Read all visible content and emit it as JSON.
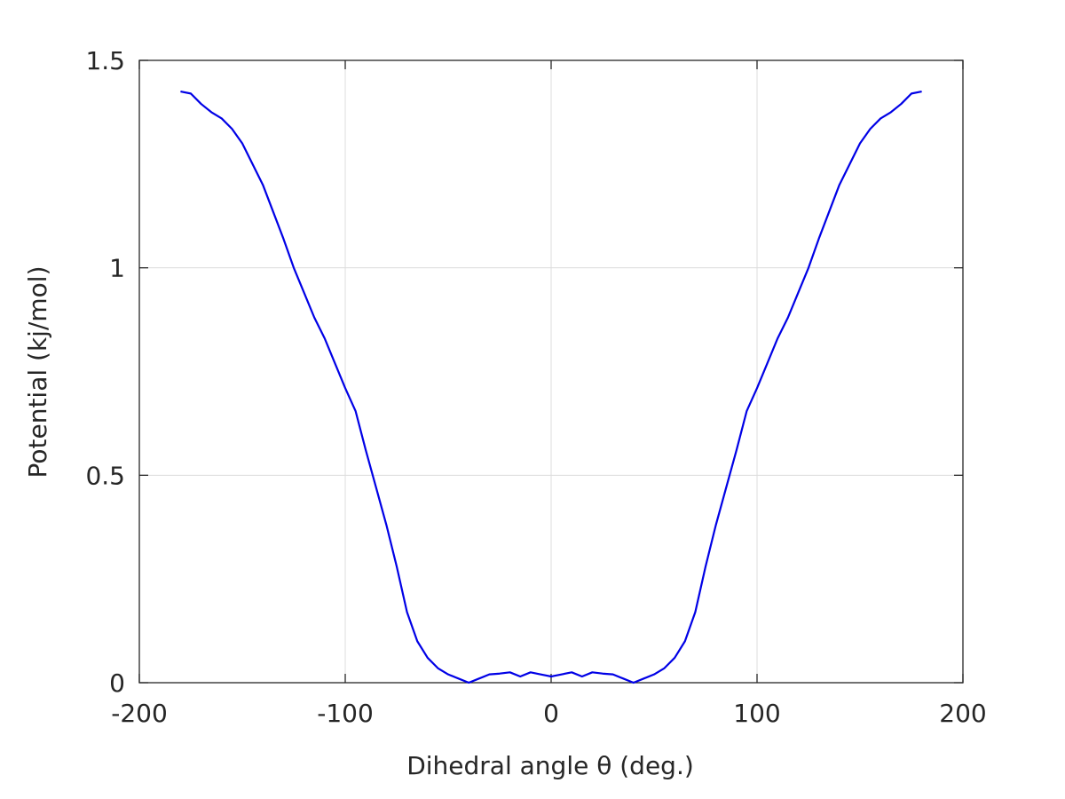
{
  "chart_data": {
    "type": "line",
    "xlabel": "Dihedral angle θ (deg.)",
    "ylabel": "Potential (kj/mol)",
    "xlim": [
      -200,
      200
    ],
    "xticks": [
      -200,
      -100,
      0,
      100,
      200
    ],
    "ylim": [
      0,
      1.5
    ],
    "yticks": [
      0,
      0.5,
      1,
      1.5
    ],
    "grid": true,
    "x": [
      -180,
      -175,
      -170,
      -165,
      -160,
      -155,
      -150,
      -145,
      -140,
      -135,
      -130,
      -125,
      -120,
      -115,
      -110,
      -105,
      -100,
      -95,
      -90,
      -85,
      -80,
      -75,
      -70,
      -65,
      -60,
      -55,
      -50,
      -45,
      -40,
      -35,
      -30,
      -25,
      -20,
      -15,
      -10,
      -5,
      0,
      5,
      10,
      15,
      20,
      25,
      30,
      35,
      40,
      45,
      50,
      55,
      60,
      65,
      70,
      75,
      80,
      85,
      90,
      95,
      100,
      105,
      110,
      115,
      120,
      125,
      130,
      135,
      140,
      145,
      150,
      155,
      160,
      165,
      170,
      175,
      180
    ],
    "series": [
      {
        "name": "Potential",
        "color": "#0000e6",
        "values": [
          1.425,
          1.42,
          1.395,
          1.375,
          1.36,
          1.335,
          1.3,
          1.25,
          1.2,
          1.135,
          1.07,
          1.0,
          0.94,
          0.88,
          0.83,
          0.77,
          0.71,
          0.655,
          0.56,
          0.47,
          0.38,
          0.28,
          0.17,
          0.1,
          0.06,
          0.035,
          0.02,
          0.01,
          0.0,
          0.01,
          0.02,
          0.022,
          0.025,
          0.015,
          0.025,
          0.02,
          0.015,
          0.02,
          0.025,
          0.015,
          0.025,
          0.022,
          0.02,
          0.01,
          0.0,
          0.01,
          0.02,
          0.035,
          0.06,
          0.1,
          0.17,
          0.28,
          0.38,
          0.47,
          0.56,
          0.655,
          0.71,
          0.77,
          0.83,
          0.88,
          0.94,
          1.0,
          1.07,
          1.135,
          1.2,
          1.25,
          1.3,
          1.335,
          1.36,
          1.375,
          1.395,
          1.42,
          1.425
        ]
      }
    ]
  }
}
